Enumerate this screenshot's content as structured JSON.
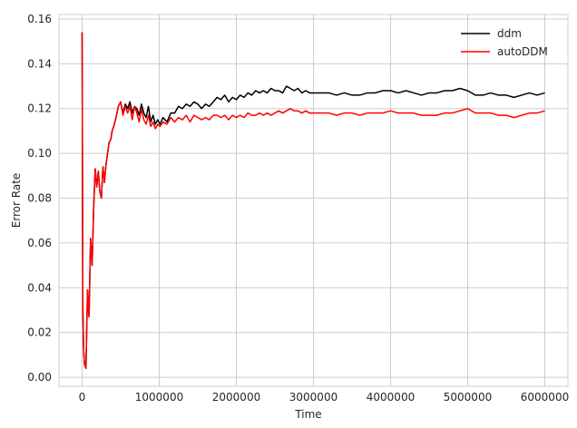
{
  "chart_data": {
    "type": "line",
    "title": "",
    "xlabel": "Time",
    "ylabel": "Error Rate",
    "xlim": [
      -300000,
      6300000
    ],
    "ylim": [
      -0.004,
      0.162
    ],
    "xticks": [
      0,
      1000000,
      2000000,
      3000000,
      4000000,
      5000000,
      6000000
    ],
    "xtick_labels": [
      "0",
      "1000000",
      "2000000",
      "3000000",
      "4000000",
      "5000000",
      "6000000"
    ],
    "yticks": [
      0.0,
      0.02,
      0.04,
      0.06,
      0.08,
      0.1,
      0.12,
      0.14,
      0.16
    ],
    "ytick_labels": [
      "0.00",
      "0.02",
      "0.04",
      "0.06",
      "0.08",
      "0.10",
      "0.12",
      "0.14",
      "0.16"
    ],
    "grid": true,
    "legend_position": "top-right",
    "series": [
      {
        "name": "ddm",
        "color": "#000000",
        "x": [
          0,
          5000,
          10000,
          20000,
          30000,
          50000,
          70000,
          90000,
          110000,
          130000,
          150000,
          170000,
          190000,
          210000,
          230000,
          250000,
          270000,
          290000,
          310000,
          330000,
          350000,
          370000,
          390000,
          410000,
          440000,
          470000,
          500000,
          530000,
          560000,
          590000,
          620000,
          650000,
          680000,
          710000,
          740000,
          770000,
          800000,
          830000,
          860000,
          890000,
          920000,
          950000,
          980000,
          1010000,
          1050000,
          1100000,
          1150000,
          1200000,
          1250000,
          1300000,
          1350000,
          1400000,
          1450000,
          1500000,
          1550000,
          1600000,
          1650000,
          1700000,
          1750000,
          1800000,
          1850000,
          1900000,
          1950000,
          2000000,
          2050000,
          2100000,
          2150000,
          2200000,
          2250000,
          2300000,
          2350000,
          2400000,
          2450000,
          2500000,
          2550000,
          2600000,
          2650000,
          2700000,
          2750000,
          2800000,
          2850000,
          2900000,
          2950000,
          3000000,
          3100000,
          3200000,
          3300000,
          3400000,
          3500000,
          3600000,
          3700000,
          3800000,
          3900000,
          4000000,
          4100000,
          4200000,
          4300000,
          4400000,
          4500000,
          4600000,
          4700000,
          4800000,
          4900000,
          5000000,
          5100000,
          5200000,
          5300000,
          5400000,
          5500000,
          5600000,
          5700000,
          5800000,
          5900000,
          6000000
        ],
        "values": [
          0.154,
          0.09,
          0.03,
          0.012,
          0.006,
          0.004,
          0.039,
          0.027,
          0.062,
          0.05,
          0.076,
          0.093,
          0.085,
          0.092,
          0.083,
          0.08,
          0.094,
          0.087,
          0.095,
          0.1,
          0.105,
          0.106,
          0.11,
          0.112,
          0.116,
          0.121,
          0.123,
          0.118,
          0.122,
          0.12,
          0.123,
          0.118,
          0.121,
          0.12,
          0.117,
          0.122,
          0.118,
          0.116,
          0.121,
          0.114,
          0.117,
          0.113,
          0.115,
          0.113,
          0.116,
          0.114,
          0.118,
          0.118,
          0.121,
          0.12,
          0.122,
          0.121,
          0.123,
          0.122,
          0.12,
          0.122,
          0.121,
          0.123,
          0.125,
          0.124,
          0.126,
          0.123,
          0.125,
          0.124,
          0.126,
          0.125,
          0.127,
          0.126,
          0.128,
          0.127,
          0.128,
          0.127,
          0.129,
          0.128,
          0.128,
          0.127,
          0.13,
          0.129,
          0.128,
          0.129,
          0.127,
          0.128,
          0.127,
          0.127,
          0.127,
          0.127,
          0.126,
          0.127,
          0.126,
          0.126,
          0.127,
          0.127,
          0.128,
          0.128,
          0.127,
          0.128,
          0.127,
          0.126,
          0.127,
          0.127,
          0.128,
          0.128,
          0.129,
          0.128,
          0.126,
          0.126,
          0.127,
          0.126,
          0.126,
          0.125,
          0.126,
          0.127,
          0.126,
          0.127
        ]
      },
      {
        "name": "autoDDM",
        "color": "#ff0000",
        "x": [
          0,
          5000,
          10000,
          20000,
          30000,
          50000,
          70000,
          90000,
          110000,
          130000,
          150000,
          170000,
          190000,
          210000,
          230000,
          250000,
          270000,
          290000,
          310000,
          330000,
          350000,
          370000,
          390000,
          410000,
          440000,
          470000,
          500000,
          530000,
          560000,
          590000,
          620000,
          650000,
          680000,
          710000,
          740000,
          770000,
          800000,
          830000,
          860000,
          890000,
          920000,
          950000,
          980000,
          1010000,
          1050000,
          1100000,
          1150000,
          1200000,
          1250000,
          1300000,
          1350000,
          1400000,
          1450000,
          1500000,
          1550000,
          1600000,
          1650000,
          1700000,
          1750000,
          1800000,
          1850000,
          1900000,
          1950000,
          2000000,
          2050000,
          2100000,
          2150000,
          2200000,
          2250000,
          2300000,
          2350000,
          2400000,
          2450000,
          2500000,
          2550000,
          2600000,
          2650000,
          2700000,
          2750000,
          2800000,
          2850000,
          2900000,
          2950000,
          3000000,
          3100000,
          3200000,
          3300000,
          3400000,
          3500000,
          3600000,
          3700000,
          3800000,
          3900000,
          4000000,
          4100000,
          4200000,
          4300000,
          4400000,
          4500000,
          4600000,
          4700000,
          4800000,
          4900000,
          5000000,
          5100000,
          5200000,
          5300000,
          5400000,
          5500000,
          5600000,
          5700000,
          5800000,
          5900000,
          6000000
        ],
        "values": [
          0.154,
          0.09,
          0.03,
          0.012,
          0.006,
          0.004,
          0.039,
          0.027,
          0.062,
          0.05,
          0.076,
          0.093,
          0.085,
          0.092,
          0.083,
          0.08,
          0.094,
          0.087,
          0.095,
          0.1,
          0.105,
          0.106,
          0.11,
          0.112,
          0.116,
          0.121,
          0.123,
          0.117,
          0.121,
          0.118,
          0.121,
          0.115,
          0.121,
          0.118,
          0.114,
          0.12,
          0.115,
          0.113,
          0.117,
          0.112,
          0.114,
          0.111,
          0.113,
          0.112,
          0.114,
          0.113,
          0.116,
          0.114,
          0.116,
          0.115,
          0.117,
          0.114,
          0.117,
          0.116,
          0.115,
          0.116,
          0.115,
          0.117,
          0.117,
          0.116,
          0.117,
          0.115,
          0.117,
          0.116,
          0.117,
          0.116,
          0.118,
          0.117,
          0.117,
          0.118,
          0.117,
          0.118,
          0.117,
          0.118,
          0.119,
          0.118,
          0.119,
          0.12,
          0.119,
          0.119,
          0.118,
          0.119,
          0.118,
          0.118,
          0.118,
          0.118,
          0.117,
          0.118,
          0.118,
          0.117,
          0.118,
          0.118,
          0.118,
          0.119,
          0.118,
          0.118,
          0.118,
          0.117,
          0.117,
          0.117,
          0.118,
          0.118,
          0.119,
          0.12,
          0.118,
          0.118,
          0.118,
          0.117,
          0.117,
          0.116,
          0.117,
          0.118,
          0.118,
          0.119
        ]
      }
    ]
  }
}
